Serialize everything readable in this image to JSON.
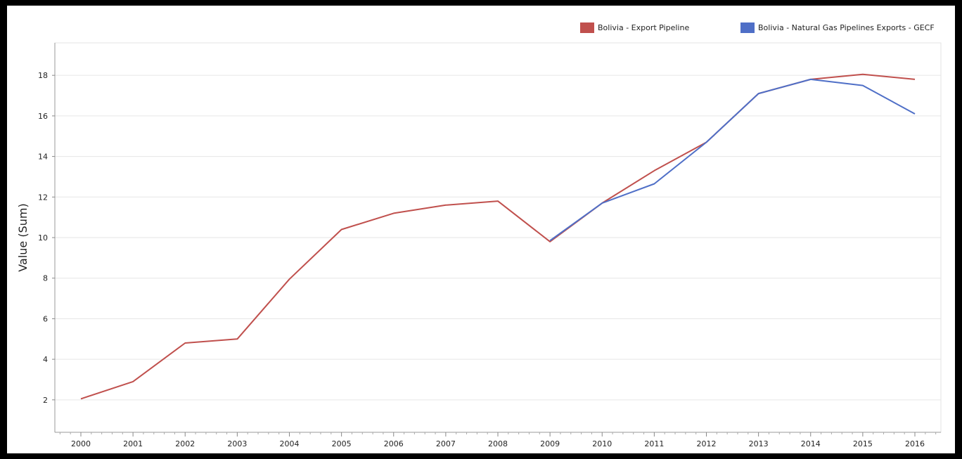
{
  "chart_data": {
    "type": "line",
    "title": "",
    "xlabel": "",
    "ylabel": "Value (Sum)",
    "ylim": [
      0.4,
      19.6
    ],
    "yticks": [
      2,
      4,
      6,
      8,
      10,
      12,
      14,
      16,
      18
    ],
    "grid": true,
    "legend_position": "top-right",
    "x": [
      "2000",
      "2001",
      "2002",
      "2003",
      "2004",
      "2005",
      "2006",
      "2007",
      "2008",
      "2009",
      "2010",
      "2011",
      "2012",
      "2013",
      "2014",
      "2015",
      "2016"
    ],
    "series": [
      {
        "name": "Bolivia - Export Pipeline",
        "color": "#c0504d",
        "values": [
          2.05,
          2.9,
          4.8,
          5.0,
          7.95,
          10.4,
          11.2,
          11.6,
          11.8,
          9.8,
          11.7,
          13.3,
          14.7,
          17.1,
          17.8,
          18.05,
          17.8
        ]
      },
      {
        "name": "Bolivia - Natural Gas Pipelines Exports  - GECF",
        "color": "#4f6fc7",
        "values": [
          null,
          null,
          null,
          null,
          null,
          null,
          null,
          null,
          null,
          9.85,
          11.7,
          12.65,
          14.7,
          17.1,
          17.8,
          17.5,
          16.1
        ]
      }
    ]
  }
}
